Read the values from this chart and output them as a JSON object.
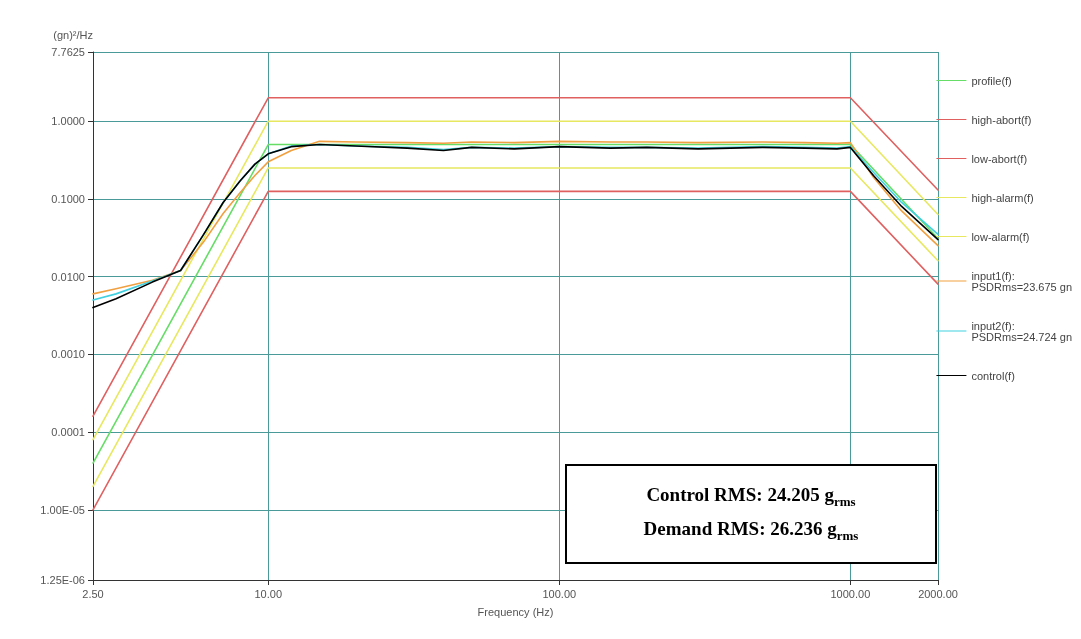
{
  "chart_data": {
    "type": "line",
    "xlabel": "Frequency (Hz)",
    "ylabel": "(gn)²/Hz",
    "log": "xy",
    "grid": true,
    "legend": "right",
    "marker": "none",
    "line_style": "solid",
    "xlim": [
      2.5,
      2000
    ],
    "xticks": [
      {
        "value": 2.5,
        "label": "2.50"
      },
      {
        "value": 10,
        "label": "10.00"
      },
      {
        "value": 100,
        "label": "100.00"
      },
      {
        "value": 1000,
        "label": "1000.00"
      },
      {
        "value": 2000,
        "label": "2000.00"
      }
    ],
    "ylim": [
      1.25e-06,
      7.7625
    ],
    "yticks": [
      {
        "value": 1.25e-06,
        "label": "1.25E-06"
      },
      {
        "value": 1e-05,
        "label": "1.00E-05"
      },
      {
        "value": 0.0001,
        "label": "0.0001"
      },
      {
        "value": 0.001,
        "label": "0.0010"
      },
      {
        "value": 0.01,
        "label": "0.0100"
      },
      {
        "value": 0.1,
        "label": "0.1000"
      },
      {
        "value": 1,
        "label": "1.0000"
      },
      7.7625
    ],
    "annotations": [
      "Control RMS: 24.205 g$_{rms}$",
      "Demand RMS: 26.236 g$_{rms}$"
    ],
    "series": [
      {
        "name": "profile(f)",
        "color": "#66dd66",
        "x": [
          2.5,
          10,
          1000,
          2000
        ],
        "values": [
          4e-05,
          0.5,
          0.5,
          0.031
        ]
      },
      {
        "name": "high-abort(f)",
        "color": "#e06060",
        "x": [
          2.5,
          10,
          1000,
          2000
        ],
        "values": [
          0.00016,
          2,
          2,
          0.13
        ]
      },
      {
        "name": "low-abort(f)",
        "color": "#e06060",
        "x": [
          2.5,
          10,
          1000,
          2000
        ],
        "values": [
          1e-05,
          0.125,
          0.125,
          0.008
        ]
      },
      {
        "name": "high-alarm(f)",
        "color": "#e8e860",
        "x": [
          2.5,
          10,
          1000,
          2000
        ],
        "values": [
          8e-05,
          1,
          1,
          0.063
        ]
      },
      {
        "name": "low-alarm(f)",
        "color": "#e8e860",
        "x": [
          2.5,
          10,
          1000,
          2000
        ],
        "values": [
          2e-05,
          0.25,
          0.25,
          0.016
        ]
      },
      {
        "name": "input1(f): PSDRms=23.675 gn",
        "color": "#f0a040",
        "x": [
          2.5,
          3,
          4,
          5,
          6,
          7,
          8,
          9,
          10,
          12,
          15,
          20,
          30,
          40,
          50,
          70,
          100,
          150,
          200,
          300,
          500,
          700,
          900,
          1000,
          1200,
          1500,
          2000
        ],
        "values": [
          0.006,
          0.007,
          0.009,
          0.012,
          0.028,
          0.065,
          0.12,
          0.2,
          0.3,
          0.42,
          0.55,
          0.54,
          0.53,
          0.52,
          0.54,
          0.53,
          0.55,
          0.54,
          0.54,
          0.53,
          0.54,
          0.53,
          0.52,
          0.53,
          0.19,
          0.07,
          0.025
        ]
      },
      {
        "name": "input2(f): PSDRms=24.724 gn",
        "color": "#40d0e0",
        "x": [
          2.5,
          3,
          4,
          5,
          6,
          7,
          8,
          9,
          10,
          12,
          15,
          20,
          30,
          40,
          50,
          70,
          100,
          150,
          200,
          300,
          500,
          700,
          900,
          1000,
          1200,
          1500,
          2000
        ],
        "values": [
          0.005,
          0.006,
          0.0088,
          0.012,
          0.035,
          0.09,
          0.17,
          0.28,
          0.38,
          0.48,
          0.5,
          0.48,
          0.46,
          0.43,
          0.46,
          0.45,
          0.47,
          0.46,
          0.46,
          0.45,
          0.47,
          0.46,
          0.45,
          0.47,
          0.22,
          0.09,
          0.035
        ]
      },
      {
        "name": "control(f)",
        "color": "#000000",
        "x": [
          2.5,
          3,
          4,
          5,
          6,
          7,
          8,
          9,
          10,
          12,
          15,
          20,
          30,
          40,
          50,
          70,
          100,
          150,
          200,
          300,
          500,
          700,
          900,
          1000,
          1200,
          1500,
          2000
        ],
        "values": [
          0.004,
          0.0052,
          0.0085,
          0.012,
          0.035,
          0.09,
          0.17,
          0.28,
          0.38,
          0.47,
          0.5,
          0.48,
          0.45,
          0.42,
          0.46,
          0.44,
          0.47,
          0.45,
          0.46,
          0.44,
          0.46,
          0.45,
          0.44,
          0.46,
          0.2,
          0.08,
          0.03
        ]
      }
    ]
  }
}
